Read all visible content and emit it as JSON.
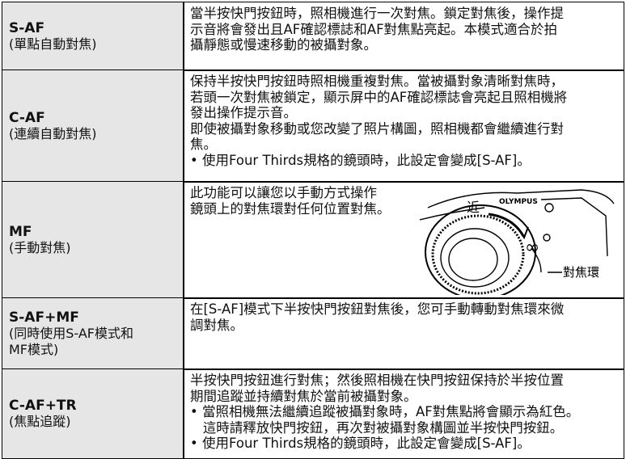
{
  "rows": [
    {
      "title": "S-AF",
      "subtitle": [
        "(單點自動對焦)"
      ],
      "lines": [
        "當半按快門按鈕時，照相機進行一次對焦。鎖定對焦後，操作提",
        "示音將會發出且AF確認標誌和AF對焦點亮起。本模式適合於拍",
        "攝靜態或慢速移動的被攝對象。"
      ]
    },
    {
      "title": "C-AF",
      "subtitle": [
        "(連續自動對焦)"
      ],
      "lines": [
        "保持半按快門按鈕時照相機重複對焦。當被攝對象清晰對焦時，",
        "若頭一次對焦被鎖定，顯示屏中的AF確認標誌會亮起且照相機將",
        "發出操作提示音。",
        "即使被攝對象移動或您改變了照片構圖，照相機都會繼續進行對",
        "焦。",
        "• 使用Four Thirds規格的鏡頭時，此設定會變成[S-AF]。"
      ]
    },
    {
      "title": "MF",
      "subtitle": [
        "(手動對焦)"
      ],
      "lines": [
        "此功能可以讓您以手動方式操作",
        "鏡頭上的對焦環對任何位置對焦。"
      ],
      "illustration": {
        "brand": "OLYMPUS",
        "near": "近",
        "infinity": "∞",
        "ring": "對焦環"
      }
    },
    {
      "title": "S-AF+MF",
      "subtitle": [
        "(同時使用S-AF模式和",
        "MF模式)"
      ],
      "lines": [
        "在[S-AF]模式下半按快門按鈕對焦後，您可手動轉動對焦環來微",
        "調對焦。"
      ]
    },
    {
      "title": "C-AF+TR",
      "subtitle": [
        "(焦點追蹤)"
      ],
      "lines": [
        "半按快門按鈕進行對焦；然後照相機在快門按鈕保持於半按位置",
        "期間追蹤並持續對焦於當前被攝對象。",
        "• 當照相機無法繼續追蹤被攝對象時，AF對焦點將會顯示為紅色。",
        "   這時請釋放快門按鈕，再次對被攝對象構圖並半按快門按鈕。",
        "• 使用Four Thirds規格的鏡頭時，此設定會變成[S-AF]。"
      ]
    }
  ]
}
